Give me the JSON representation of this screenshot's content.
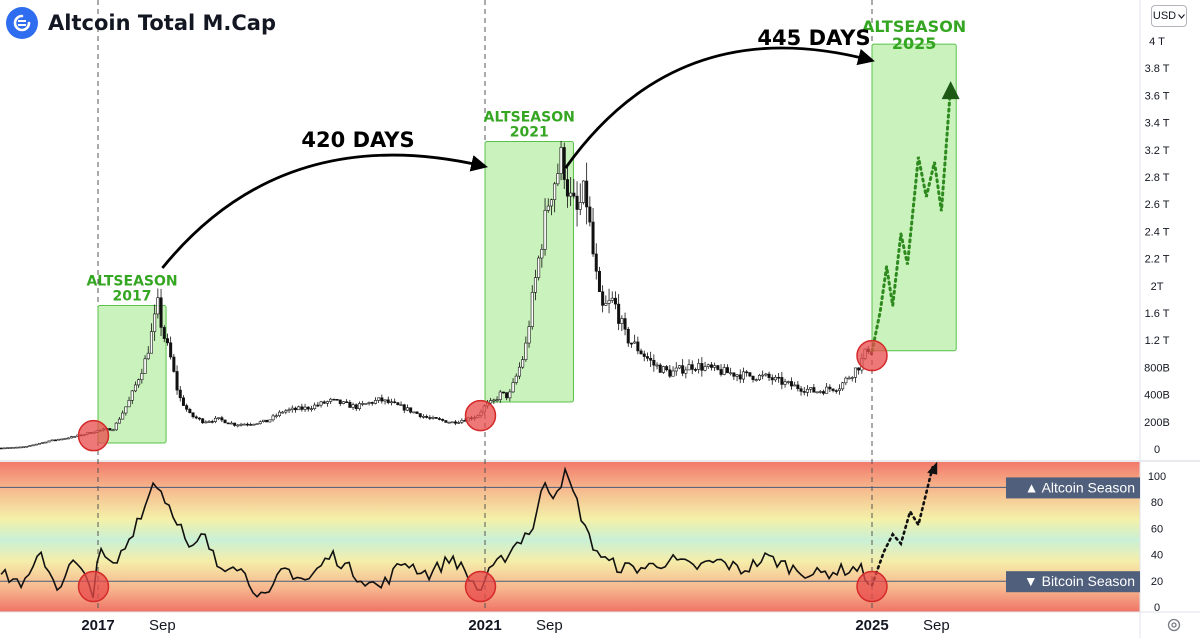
{
  "header": {
    "title": "Altcoin Total M.Cap",
    "currency_button": "USD"
  },
  "icons": {
    "logo": "altcoin-logo-icon",
    "currency_dropdown": "chevron-down-icon",
    "settings": "gear-icon"
  },
  "colors": {
    "season_box": "#bff0b0",
    "season_box_border": "#59c14a",
    "season_label": "#35a622",
    "arrow": "#000000",
    "marker": "#e84b4b",
    "forecast": "#2e8a1e"
  },
  "chart_data": [
    {
      "type": "line",
      "title": "Altcoin Total M.Cap",
      "y_axis": {
        "position": "right",
        "tick_labels": [
          "0",
          "200B",
          "400B",
          "800B",
          "1.2 T",
          "1.6 T",
          "2T",
          "2.2 T",
          "2.4 T",
          "2.6 T",
          "2.8 T",
          "3.2 T",
          "3.4 T",
          "3.6 T",
          "3.8 T",
          "4 T"
        ],
        "ylim": [
          0,
          4000
        ]
      },
      "x_axis": {
        "tick_labels": [
          "2017",
          "Sep",
          "2021",
          "Sep",
          "2025",
          "Sep"
        ],
        "tick_dates": [
          "2017-01-01",
          "2017-09-01",
          "2021-01-01",
          "2021-09-01",
          "2025-01-01",
          "2025-09-01"
        ]
      },
      "series": [
        {
          "unit": "billion USD",
          "points": [
            [
              "2016-01-01",
              10
            ],
            [
              "2016-04-01",
              22
            ],
            [
              "2016-07-01",
              80
            ],
            [
              "2016-10-01",
              120
            ],
            [
              "2017-01-01",
              180
            ],
            [
              "2017-03-01",
              200
            ],
            [
              "2017-05-01",
              480
            ],
            [
              "2017-07-01",
              880
            ],
            [
              "2017-08-15",
              1400
            ],
            [
              "2017-09-01",
              1150
            ],
            [
              "2017-10-01",
              900
            ],
            [
              "2017-11-01",
              520
            ],
            [
              "2017-12-15",
              330
            ],
            [
              "2018-02-01",
              270
            ],
            [
              "2018-04-01",
              290
            ],
            [
              "2018-06-01",
              240
            ],
            [
              "2018-08-01",
              250
            ],
            [
              "2018-10-01",
              270
            ],
            [
              "2018-12-01",
              370
            ],
            [
              "2019-03-01",
              400
            ],
            [
              "2019-06-01",
              470
            ],
            [
              "2019-09-01",
              410
            ],
            [
              "2019-12-01",
              480
            ],
            [
              "2020-03-01",
              400
            ],
            [
              "2020-06-01",
              300
            ],
            [
              "2020-09-01",
              260
            ],
            [
              "2020-12-01",
              320
            ],
            [
              "2021-01-01",
              420
            ],
            [
              "2021-02-01",
              460
            ],
            [
              "2021-03-01",
              540
            ],
            [
              "2021-04-01",
              510
            ],
            [
              "2021-05-01",
              720
            ],
            [
              "2021-06-01",
              950
            ],
            [
              "2021-07-01",
              1500
            ],
            [
              "2021-08-01",
              2000
            ],
            [
              "2021-09-01",
              2480
            ],
            [
              "2021-10-01",
              2700
            ],
            [
              "2021-10-20",
              2870
            ],
            [
              "2021-11-15",
              2450
            ],
            [
              "2021-12-15",
              2300
            ],
            [
              "2022-01-15",
              2520
            ],
            [
              "2022-02-15",
              1850
            ],
            [
              "2022-03-15",
              1350
            ],
            [
              "2022-05-01",
              1450
            ],
            [
              "2022-06-15",
              1100
            ],
            [
              "2022-08-01",
              980
            ],
            [
              "2022-10-01",
              820
            ],
            [
              "2022-12-01",
              740
            ],
            [
              "2023-03-01",
              820
            ],
            [
              "2023-06-01",
              760
            ],
            [
              "2023-09-01",
              720
            ],
            [
              "2023-12-01",
              700
            ],
            [
              "2024-03-01",
              620
            ],
            [
              "2024-06-01",
              560
            ],
            [
              "2024-09-01",
              610
            ],
            [
              "2024-11-15",
              820
            ],
            [
              "2024-12-20",
              1000
            ],
            [
              "2025-01-01",
              950
            ]
          ]
        },
        {
          "name": "forecast",
          "style": "dotted",
          "unit": "billion USD",
          "points": [
            [
              "2025-01-01",
              950
            ],
            [
              "2025-02-01",
              1340
            ],
            [
              "2025-02-25",
              1780
            ],
            [
              "2025-03-20",
              1400
            ],
            [
              "2025-04-20",
              2100
            ],
            [
              "2025-05-15",
              1800
            ],
            [
              "2025-06-25",
              2850
            ],
            [
              "2025-07-25",
              2460
            ],
            [
              "2025-08-25",
              2800
            ],
            [
              "2025-09-20",
              2320
            ],
            [
              "2025-10-25",
              3550
            ]
          ]
        }
      ],
      "annotations": {
        "season_boxes": [
          {
            "label_line1": "ALTSEASON",
            "label_line2": "2017",
            "x_start": "2017-01-01",
            "x_end": "2017-09-15",
            "y_low": 0,
            "y_high": 1400
          },
          {
            "label_line1": "ALTSEASON",
            "label_line2": "2021",
            "x_start": "2021-01-01",
            "x_end": "2021-12-01",
            "y_low": 400,
            "y_high": 3000
          },
          {
            "label_line1": "ALTSEASON",
            "label_line2": "2025",
            "x_start": "2025-01-01",
            "x_end": "2025-11-15",
            "y_low": 900,
            "y_high": 3950
          }
        ],
        "arrows": [
          {
            "label": "420 DAYS",
            "from": "2017-09-01",
            "to": "2021-01-01"
          },
          {
            "label": "445 DAYS",
            "from": "2021-11-01",
            "to": "2025-01-01"
          }
        ],
        "markers": [
          "2016-12-15",
          "2020-12-15",
          "2025-01-01"
        ],
        "vertical_lines": [
          "2017-01-01",
          "2021-01-01",
          "2025-01-01"
        ]
      }
    },
    {
      "type": "line",
      "y_axis": {
        "position": "right",
        "tick_labels": [
          "0",
          "20",
          "40",
          "60",
          "80",
          "100"
        ],
        "ylim": [
          0,
          100
        ]
      },
      "reference_lines": [
        {
          "label": "▲ Altcoin Season",
          "value": 90
        },
        {
          "label": "▼ Bitcoin Season",
          "value": 20
        }
      ],
      "background": "red to green to red gradient",
      "series": [
        {
          "name": "index",
          "points": [
            [
              "2016-01-01",
              25
            ],
            [
              "2016-04-01",
              18
            ],
            [
              "2016-06-01",
              40
            ],
            [
              "2016-08-01",
              15
            ],
            [
              "2016-10-01",
              35
            ],
            [
              "2016-12-15",
              12
            ],
            [
              "2017-01-01",
              42
            ],
            [
              "2017-03-01",
              30
            ],
            [
              "2017-05-01",
              52
            ],
            [
              "2017-06-01",
              68
            ],
            [
              "2017-07-01",
              77
            ],
            [
              "2017-08-01",
              97
            ],
            [
              "2017-09-15",
              80
            ],
            [
              "2017-11-01",
              65
            ],
            [
              "2017-12-15",
              40
            ],
            [
              "2018-02-01",
              55
            ],
            [
              "2018-04-01",
              30
            ],
            [
              "2018-06-01",
              35
            ],
            [
              "2018-08-01",
              18
            ],
            [
              "2018-10-01",
              5
            ],
            [
              "2018-12-01",
              30
            ],
            [
              "2019-03-01",
              20
            ],
            [
              "2019-06-01",
              40
            ],
            [
              "2019-09-01",
              25
            ],
            [
              "2019-12-01",
              15
            ],
            [
              "2020-03-01",
              35
            ],
            [
              "2020-06-01",
              25
            ],
            [
              "2020-09-01",
              38
            ],
            [
              "2020-12-15",
              12
            ],
            [
              "2021-01-01",
              22
            ],
            [
              "2021-03-01",
              35
            ],
            [
              "2021-04-01",
              42
            ],
            [
              "2021-06-01",
              55
            ],
            [
              "2021-07-01",
              60
            ],
            [
              "2021-08-15",
              95
            ],
            [
              "2021-09-15",
              85
            ],
            [
              "2021-11-01",
              100
            ],
            [
              "2021-12-15",
              78
            ],
            [
              "2022-02-01",
              50
            ],
            [
              "2022-04-01",
              35
            ],
            [
              "2022-06-01",
              30
            ],
            [
              "2022-09-01",
              30
            ],
            [
              "2022-12-01",
              36
            ],
            [
              "2023-03-01",
              30
            ],
            [
              "2023-06-01",
              35
            ],
            [
              "2023-09-01",
              28
            ],
            [
              "2023-12-01",
              38
            ],
            [
              "2024-03-01",
              30
            ],
            [
              "2024-06-01",
              25
            ],
            [
              "2024-09-01",
              28
            ],
            [
              "2024-11-15",
              30
            ],
            [
              "2025-01-01",
              17
            ]
          ]
        },
        {
          "name": "forecast",
          "style": "dotted",
          "points": [
            [
              "2025-01-01",
              17
            ],
            [
              "2025-02-15",
              42
            ],
            [
              "2025-03-20",
              55
            ],
            [
              "2025-04-20",
              48
            ],
            [
              "2025-05-25",
              72
            ],
            [
              "2025-06-25",
              62
            ],
            [
              "2025-08-20",
              107
            ]
          ]
        }
      ],
      "markers": [
        "2016-12-15",
        "2020-12-15",
        "2025-01-01"
      ]
    }
  ]
}
